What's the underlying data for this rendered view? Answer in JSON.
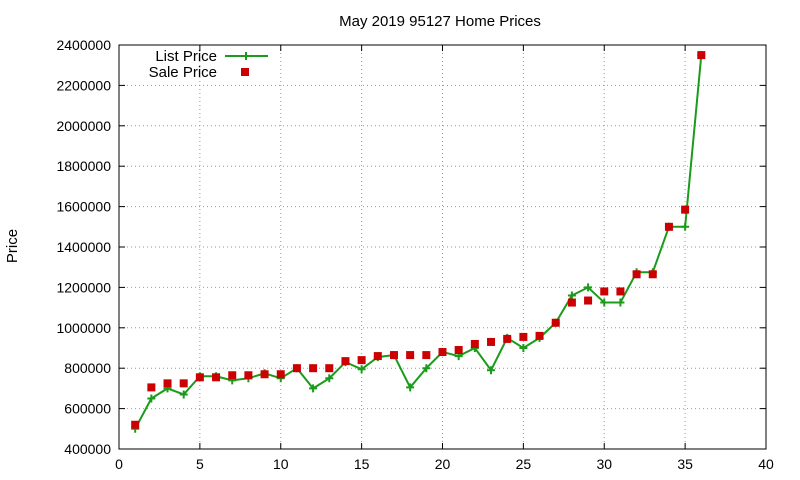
{
  "chart_data": {
    "type": "line",
    "title": "May 2019 95127 Home Prices",
    "xlabel": "",
    "ylabel": "Price",
    "xlim": [
      0,
      40
    ],
    "ylim": [
      400000,
      2400000
    ],
    "x_ticks": [
      "0",
      "5",
      "10",
      "15",
      "20",
      "25",
      "30",
      "35",
      "40"
    ],
    "y_ticks": [
      "400000",
      "600000",
      "800000",
      "1000000",
      "1200000",
      "1400000",
      "1600000",
      "1800000",
      "2000000",
      "2200000",
      "2400000"
    ],
    "grid": "dotted",
    "legend_position": "top-left",
    "series": [
      {
        "name": "List Price",
        "style": "line+plus",
        "color": "#1a9c1a",
        "x": [
          1,
          2,
          3,
          4,
          5,
          6,
          7,
          8,
          9,
          10,
          11,
          12,
          13,
          14,
          15,
          16,
          17,
          18,
          19,
          20,
          21,
          22,
          23,
          24,
          25,
          26,
          27,
          28,
          29,
          30,
          31,
          32,
          33,
          34,
          35,
          36
        ],
        "values": [
          500000,
          650000,
          700000,
          670000,
          760000,
          760000,
          740000,
          750000,
          775000,
          750000,
          800000,
          700000,
          750000,
          830000,
          795000,
          855000,
          865000,
          705000,
          800000,
          880000,
          860000,
          900000,
          790000,
          950000,
          900000,
          950000,
          1025000,
          1160000,
          1200000,
          1125000,
          1125000,
          1275000,
          1275000,
          1500000,
          1500000,
          2350000
        ]
      },
      {
        "name": "Sale Price",
        "style": "square-markers",
        "color": "#cc0000",
        "x": [
          1,
          2,
          3,
          4,
          5,
          6,
          7,
          8,
          9,
          10,
          11,
          12,
          13,
          14,
          15,
          16,
          17,
          18,
          19,
          20,
          21,
          22,
          23,
          24,
          25,
          26,
          27,
          28,
          29,
          30,
          31,
          32,
          33,
          34,
          35,
          36
        ],
        "values": [
          520000,
          705000,
          725000,
          725000,
          755000,
          755000,
          765000,
          765000,
          770000,
          770000,
          800000,
          800000,
          800000,
          835000,
          840000,
          860000,
          865000,
          865000,
          865000,
          880000,
          890000,
          920000,
          930000,
          945000,
          955000,
          960000,
          1025000,
          1125000,
          1135000,
          1180000,
          1180000,
          1265000,
          1265000,
          1500000,
          1585000,
          2350000
        ]
      }
    ]
  }
}
